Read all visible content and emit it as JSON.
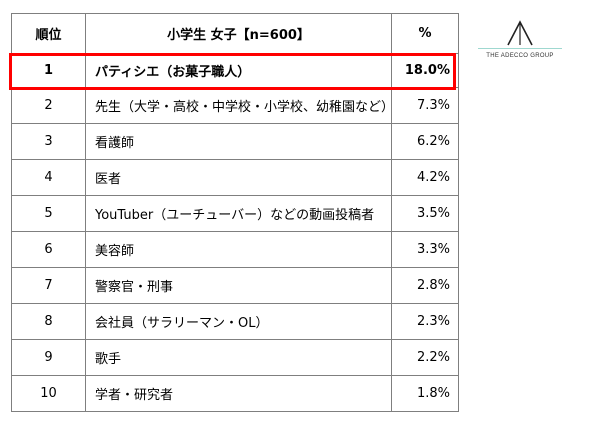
{
  "table": {
    "header": {
      "rank": "順位",
      "group": "小学生 女子【n=600】",
      "percent": "%"
    },
    "rows": [
      {
        "rank": "1",
        "job": "パティシエ（お菓子職人）",
        "percent": "18.0%"
      },
      {
        "rank": "2",
        "job": "先生（大学・高校・中学校・小学校、幼稚園など）",
        "percent": "7.3%"
      },
      {
        "rank": "3",
        "job": "看護師",
        "percent": "6.2%"
      },
      {
        "rank": "4",
        "job": "医者",
        "percent": "4.2%"
      },
      {
        "rank": "5",
        "job": "YouTuber（ユーチューバー）などの動画投稿者",
        "percent": "3.5%"
      },
      {
        "rank": "6",
        "job": "美容師",
        "percent": "3.3%"
      },
      {
        "rank": "7",
        "job": "警察官・刑事",
        "percent": "2.8%"
      },
      {
        "rank": "8",
        "job": "会社員（サラリーマン・OL）",
        "percent": "2.3%"
      },
      {
        "rank": "9",
        "job": "歌手",
        "percent": "2.2%"
      },
      {
        "rank": "10",
        "job": "学者・研究者",
        "percent": "1.8%"
      }
    ]
  },
  "highlight": {
    "color": "#ff0000",
    "row_rank": "1"
  },
  "brand": {
    "logo": "adecco-a-logo",
    "name": "THE ADECCO GROUP",
    "accent_color": "#9fd8d0"
  }
}
